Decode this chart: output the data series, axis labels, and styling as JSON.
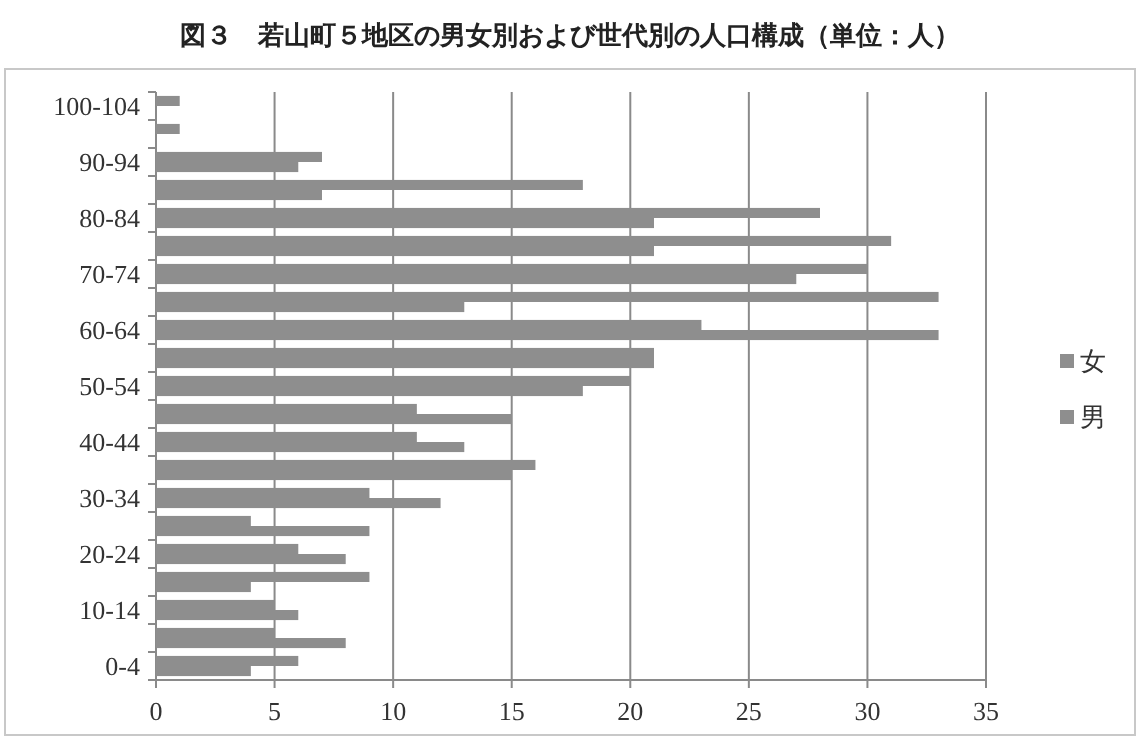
{
  "chart_data": {
    "type": "bar",
    "orientation": "horizontal",
    "title": "図３　若山町５地区の男女別および世代別の人口構成（単位：人）",
    "categories": [
      "100-104",
      null,
      "90-94",
      null,
      "80-84",
      null,
      "70-74",
      null,
      "60-64",
      null,
      "50-54",
      null,
      "40-44",
      null,
      "30-34",
      null,
      "20-24",
      null,
      "10-14",
      null,
      "0-4"
    ],
    "series": [
      {
        "name": "女",
        "color": "#8e8e8e",
        "values": [
          1,
          1,
          7,
          18,
          28,
          31,
          30,
          33,
          23,
          21,
          20,
          11,
          11,
          16,
          9,
          4,
          6,
          9,
          5,
          5,
          6
        ]
      },
      {
        "name": "男",
        "color": "#8e8e8e",
        "values": [
          0,
          0,
          6,
          7,
          21,
          21,
          27,
          13,
          33,
          21,
          18,
          15,
          13,
          15,
          12,
          9,
          8,
          4,
          6,
          8,
          4
        ]
      }
    ],
    "xlim": [
      0,
      35
    ],
    "xticks": [
      0,
      5,
      10,
      15,
      20,
      25,
      30,
      35
    ],
    "grid": "x",
    "legend": "right"
  }
}
